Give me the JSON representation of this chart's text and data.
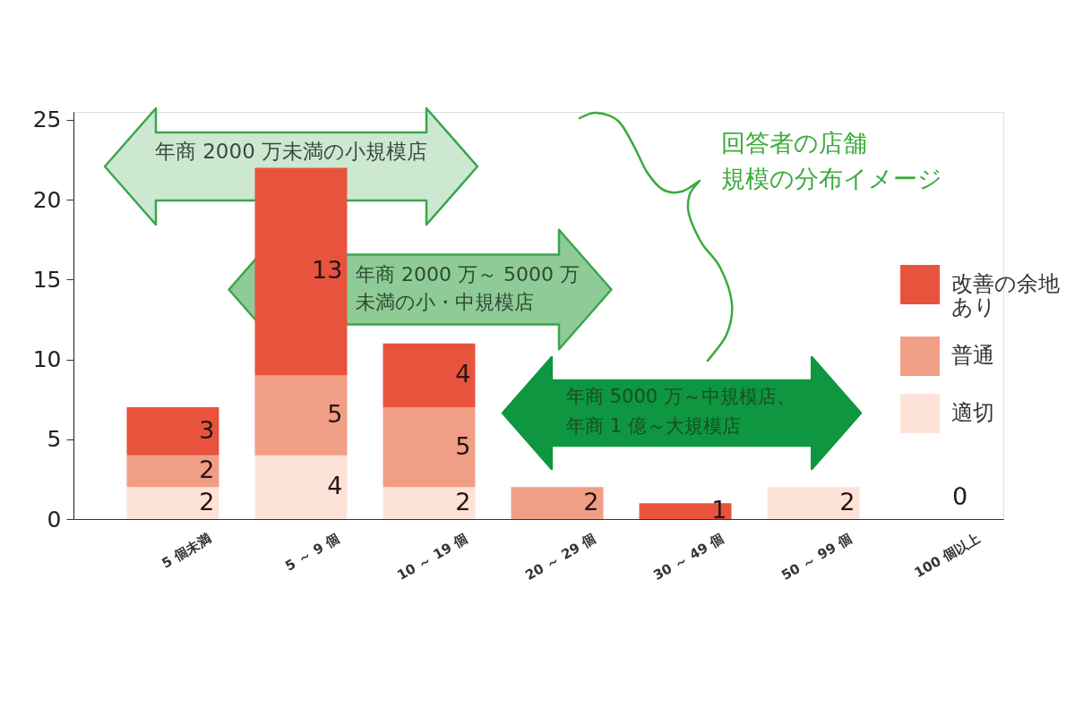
{
  "chart_data": {
    "type": "bar",
    "stacked": true,
    "categories": [
      "5 個未満",
      "5 ～ 9 個",
      "10 ～ 19 個",
      "20 ～ 29 個",
      "30 ～ 49 個",
      "50 ～ 99 個",
      "100 個以上"
    ],
    "series": [
      {
        "name": "適切",
        "color": "#fde2d7",
        "values": [
          2,
          4,
          2,
          null,
          null,
          2,
          null
        ]
      },
      {
        "name": "普通",
        "color": "#f19e86",
        "values": [
          2,
          5,
          5,
          2,
          null,
          null,
          null
        ]
      },
      {
        "name": "改善の余地あり",
        "color": "#e8533e",
        "values": [
          3,
          13,
          4,
          null,
          1,
          null,
          null
        ]
      }
    ],
    "totals": [
      null,
      null,
      null,
      null,
      null,
      null,
      "0"
    ],
    "data_labels": true,
    "ylim": [
      0,
      25.5
    ],
    "yticks": [
      0,
      5,
      10,
      15,
      20,
      25
    ],
    "grid": false,
    "legend": "right",
    "annotations": [
      "年商 2000 万未満の小規模店",
      "年商 2000 万～ 5000 万未満の小・中規模店",
      "年商 5000 万～中規模店、年商 1 億～大規模店",
      "回答者の店舗規模の分布イメージ"
    ]
  }
}
